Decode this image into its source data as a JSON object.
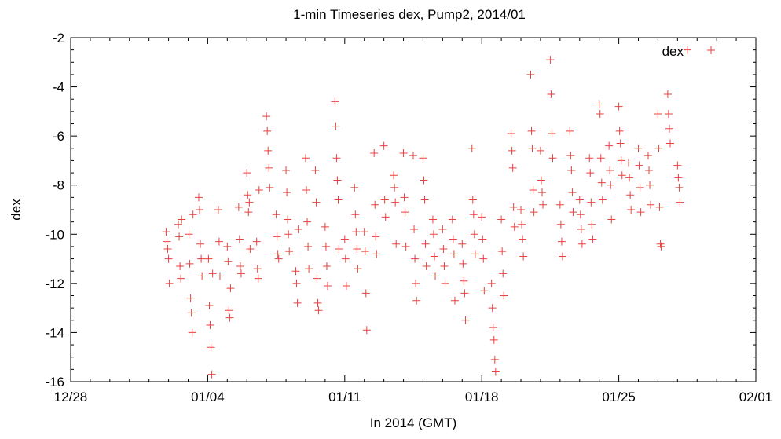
{
  "chart_data": {
    "type": "scatter",
    "title": "1-min Timeseries dex, Pump2, 2014/01",
    "xlabel": "In 2014 (GMT)",
    "ylabel": "dex",
    "x_axis": "date",
    "xlim": [
      "2013-12-28",
      "2014-02-01"
    ],
    "ylim": [
      -16,
      -2
    ],
    "x_ticks": [
      "12/28",
      "01/04",
      "01/11",
      "01/18",
      "01/25",
      "02/01"
    ],
    "y_ticks": [
      "-2",
      "-4",
      "-6",
      "-8",
      "-10",
      "-12",
      "-14",
      "-16"
    ],
    "legend": {
      "entry": "dex",
      "position": "top-right"
    },
    "grid": false,
    "marker": "+",
    "marker_color": "#e8423f",
    "series": [
      {
        "name": "dex",
        "points": [
          [
            "2014-01-01 21:00",
            -9.9
          ],
          [
            "2014-01-01 22:00",
            -10.3
          ],
          [
            "2014-01-01 23:00",
            -10.6
          ],
          [
            "2014-01-02 00:00",
            -11.0
          ],
          [
            "2014-01-02 01:00",
            -12.0
          ],
          [
            "2014-01-02 12:00",
            -9.6
          ],
          [
            "2014-01-02 13:00",
            -10.1
          ],
          [
            "2014-01-02 14:00",
            -11.3
          ],
          [
            "2014-01-02 15:00",
            -11.8
          ],
          [
            "2014-01-02 16:00",
            -9.4
          ],
          [
            "2014-01-03 01:00",
            -10.0
          ],
          [
            "2014-01-03 02:00",
            -11.2
          ],
          [
            "2014-01-03 03:00",
            -12.6
          ],
          [
            "2014-01-03 04:00",
            -13.2
          ],
          [
            "2014-01-03 05:00",
            -14.0
          ],
          [
            "2014-01-03 06:00",
            -9.2
          ],
          [
            "2014-01-03 13:00",
            -8.5
          ],
          [
            "2014-01-03 14:00",
            -9.0
          ],
          [
            "2014-01-03 15:00",
            -10.4
          ],
          [
            "2014-01-03 16:00",
            -11.0
          ],
          [
            "2014-01-03 17:00",
            -11.7
          ],
          [
            "2014-01-04 01:00",
            -11.0
          ],
          [
            "2014-01-04 02:00",
            -12.9
          ],
          [
            "2014-01-04 03:00",
            -13.7
          ],
          [
            "2014-01-04 04:00",
            -14.6
          ],
          [
            "2014-01-04 05:00",
            -15.7
          ],
          [
            "2014-01-04 06:00",
            -11.6
          ],
          [
            "2014-01-04 13:00",
            -9.0
          ],
          [
            "2014-01-04 14:00",
            -10.3
          ],
          [
            "2014-01-04 15:00",
            -11.7
          ],
          [
            "2014-01-05 00:00",
            -10.5
          ],
          [
            "2014-01-05 01:00",
            -11.1
          ],
          [
            "2014-01-05 02:00",
            -13.1
          ],
          [
            "2014-01-05 03:00",
            -13.4
          ],
          [
            "2014-01-05 04:00",
            -12.2
          ],
          [
            "2014-01-05 14:00",
            -8.9
          ],
          [
            "2014-01-05 15:00",
            -10.2
          ],
          [
            "2014-01-05 16:00",
            -11.3
          ],
          [
            "2014-01-05 17:00",
            -11.6
          ],
          [
            "2014-01-06 00:00",
            -7.5
          ],
          [
            "2014-01-06 01:00",
            -8.4
          ],
          [
            "2014-01-06 02:00",
            -9.1
          ],
          [
            "2014-01-06 03:00",
            -8.7
          ],
          [
            "2014-01-06 04:00",
            -10.6
          ],
          [
            "2014-01-06 12:00",
            -10.3
          ],
          [
            "2014-01-06 13:00",
            -11.4
          ],
          [
            "2014-01-06 14:00",
            -11.8
          ],
          [
            "2014-01-06 15:00",
            -8.2
          ],
          [
            "2014-01-07 00:00",
            -5.2
          ],
          [
            "2014-01-07 01:00",
            -5.8
          ],
          [
            "2014-01-07 02:00",
            -6.6
          ],
          [
            "2014-01-07 03:00",
            -7.3
          ],
          [
            "2014-01-07 04:00",
            -8.1
          ],
          [
            "2014-01-07 12:00",
            -9.2
          ],
          [
            "2014-01-07 13:00",
            -10.1
          ],
          [
            "2014-01-07 14:00",
            -10.8
          ],
          [
            "2014-01-07 15:00",
            -11.0
          ],
          [
            "2014-01-08 00:00",
            -7.4
          ],
          [
            "2014-01-08 01:00",
            -8.3
          ],
          [
            "2014-01-08 02:00",
            -9.4
          ],
          [
            "2014-01-08 03:00",
            -10.0
          ],
          [
            "2014-01-08 04:00",
            -10.7
          ],
          [
            "2014-01-08 12:00",
            -11.5
          ],
          [
            "2014-01-08 13:00",
            -12.0
          ],
          [
            "2014-01-08 14:00",
            -12.8
          ],
          [
            "2014-01-08 15:00",
            -9.8
          ],
          [
            "2014-01-09 00:00",
            -6.9
          ],
          [
            "2014-01-09 01:00",
            -8.2
          ],
          [
            "2014-01-09 02:00",
            -9.5
          ],
          [
            "2014-01-09 03:00",
            -10.5
          ],
          [
            "2014-01-09 04:00",
            -11.4
          ],
          [
            "2014-01-09 12:00",
            -7.4
          ],
          [
            "2014-01-09 13:00",
            -8.7
          ],
          [
            "2014-01-09 14:00",
            -11.8
          ],
          [
            "2014-01-09 15:00",
            -12.8
          ],
          [
            "2014-01-09 16:00",
            -13.1
          ],
          [
            "2014-01-10 00:00",
            -9.7
          ],
          [
            "2014-01-10 01:00",
            -10.5
          ],
          [
            "2014-01-10 02:00",
            -11.3
          ],
          [
            "2014-01-10 03:00",
            -12.1
          ],
          [
            "2014-01-10 12:00",
            -4.6
          ],
          [
            "2014-01-10 13:00",
            -5.6
          ],
          [
            "2014-01-10 14:00",
            -6.9
          ],
          [
            "2014-01-10 15:00",
            -7.8
          ],
          [
            "2014-01-10 16:00",
            -8.6
          ],
          [
            "2014-01-10 17:00",
            -10.6
          ],
          [
            "2014-01-11 00:00",
            -10.2
          ],
          [
            "2014-01-11 01:00",
            -11.0
          ],
          [
            "2014-01-11 02:00",
            -12.1
          ],
          [
            "2014-01-11 12:00",
            -8.1
          ],
          [
            "2014-01-11 13:00",
            -9.2
          ],
          [
            "2014-01-11 14:00",
            -9.9
          ],
          [
            "2014-01-11 15:00",
            -10.6
          ],
          [
            "2014-01-11 16:00",
            -11.4
          ],
          [
            "2014-01-12 00:00",
            -9.9
          ],
          [
            "2014-01-12 01:00",
            -10.7
          ],
          [
            "2014-01-12 02:00",
            -12.4
          ],
          [
            "2014-01-12 03:00",
            -13.9
          ],
          [
            "2014-01-12 12:00",
            -6.7
          ],
          [
            "2014-01-12 13:00",
            -8.8
          ],
          [
            "2014-01-12 14:00",
            -10.1
          ],
          [
            "2014-01-12 15:00",
            -10.8
          ],
          [
            "2014-01-13 00:00",
            -6.4
          ],
          [
            "2014-01-13 01:00",
            -8.6
          ],
          [
            "2014-01-13 02:00",
            -9.3
          ],
          [
            "2014-01-13 12:00",
            -7.6
          ],
          [
            "2014-01-13 13:00",
            -8.1
          ],
          [
            "2014-01-13 14:00",
            -8.7
          ],
          [
            "2014-01-13 15:00",
            -10.4
          ],
          [
            "2014-01-14 00:00",
            -6.7
          ],
          [
            "2014-01-14 01:00",
            -8.5
          ],
          [
            "2014-01-14 02:00",
            -9.1
          ],
          [
            "2014-01-14 03:00",
            -10.5
          ],
          [
            "2014-01-14 12:00",
            -6.8
          ],
          [
            "2014-01-14 13:00",
            -9.8
          ],
          [
            "2014-01-14 14:00",
            -11.0
          ],
          [
            "2014-01-14 15:00",
            -12.0
          ],
          [
            "2014-01-14 16:00",
            -12.7
          ],
          [
            "2014-01-15 00:00",
            -6.9
          ],
          [
            "2014-01-15 01:00",
            -7.8
          ],
          [
            "2014-01-15 02:00",
            -8.6
          ],
          [
            "2014-01-15 03:00",
            -10.4
          ],
          [
            "2014-01-15 04:00",
            -11.3
          ],
          [
            "2014-01-15 12:00",
            -9.4
          ],
          [
            "2014-01-15 13:00",
            -10.0
          ],
          [
            "2014-01-15 14:00",
            -10.9
          ],
          [
            "2014-01-15 15:00",
            -11.7
          ],
          [
            "2014-01-16 00:00",
            -9.8
          ],
          [
            "2014-01-16 01:00",
            -10.6
          ],
          [
            "2014-01-16 02:00",
            -11.3
          ],
          [
            "2014-01-16 03:00",
            -12.0
          ],
          [
            "2014-01-16 12:00",
            -9.4
          ],
          [
            "2014-01-16 13:00",
            -10.2
          ],
          [
            "2014-01-16 14:00",
            -10.8
          ],
          [
            "2014-01-16 15:00",
            -12.7
          ],
          [
            "2014-01-17 00:00",
            -10.4
          ],
          [
            "2014-01-17 01:00",
            -11.2
          ],
          [
            "2014-01-17 02:00",
            -11.9
          ],
          [
            "2014-01-17 03:00",
            -12.4
          ],
          [
            "2014-01-17 04:00",
            -13.5
          ],
          [
            "2014-01-17 12:00",
            -6.5
          ],
          [
            "2014-01-17 13:00",
            -8.6
          ],
          [
            "2014-01-17 14:00",
            -9.2
          ],
          [
            "2014-01-17 15:00",
            -10.0
          ],
          [
            "2014-01-17 16:00",
            -10.8
          ],
          [
            "2014-01-18 00:00",
            -9.3
          ],
          [
            "2014-01-18 01:00",
            -10.2
          ],
          [
            "2014-01-18 02:00",
            -11.0
          ],
          [
            "2014-01-18 03:00",
            -12.3
          ],
          [
            "2014-01-18 12:00",
            -12.0
          ],
          [
            "2014-01-18 13:00",
            -13.0
          ],
          [
            "2014-01-18 14:00",
            -13.8
          ],
          [
            "2014-01-18 15:00",
            -14.3
          ],
          [
            "2014-01-18 16:00",
            -15.1
          ],
          [
            "2014-01-18 17:00",
            -15.6
          ],
          [
            "2014-01-19 00:00",
            -9.4
          ],
          [
            "2014-01-19 01:00",
            -10.7
          ],
          [
            "2014-01-19 02:00",
            -11.6
          ],
          [
            "2014-01-19 03:00",
            -12.5
          ],
          [
            "2014-01-19 12:00",
            -5.9
          ],
          [
            "2014-01-19 13:00",
            -6.6
          ],
          [
            "2014-01-19 14:00",
            -7.3
          ],
          [
            "2014-01-19 15:00",
            -8.9
          ],
          [
            "2014-01-19 16:00",
            -9.7
          ],
          [
            "2014-01-20 00:00",
            -9.0
          ],
          [
            "2014-01-20 01:00",
            -9.6
          ],
          [
            "2014-01-20 02:00",
            -10.2
          ],
          [
            "2014-01-20 03:00",
            -10.9
          ],
          [
            "2014-01-20 12:00",
            -3.5
          ],
          [
            "2014-01-20 13:00",
            -5.8
          ],
          [
            "2014-01-20 14:00",
            -6.5
          ],
          [
            "2014-01-20 15:00",
            -8.2
          ],
          [
            "2014-01-20 16:00",
            -9.1
          ],
          [
            "2014-01-21 00:00",
            -6.6
          ],
          [
            "2014-01-21 01:00",
            -7.8
          ],
          [
            "2014-01-21 02:00",
            -8.3
          ],
          [
            "2014-01-21 03:00",
            -8.8
          ],
          [
            "2014-01-21 12:00",
            -2.9
          ],
          [
            "2014-01-21 13:00",
            -4.3
          ],
          [
            "2014-01-21 14:00",
            -5.9
          ],
          [
            "2014-01-21 15:00",
            -6.9
          ],
          [
            "2014-01-22 00:00",
            -8.8
          ],
          [
            "2014-01-22 01:00",
            -9.6
          ],
          [
            "2014-01-22 02:00",
            -10.3
          ],
          [
            "2014-01-22 03:00",
            -10.9
          ],
          [
            "2014-01-22 12:00",
            -5.8
          ],
          [
            "2014-01-22 13:00",
            -6.8
          ],
          [
            "2014-01-22 14:00",
            -7.4
          ],
          [
            "2014-01-22 15:00",
            -8.3
          ],
          [
            "2014-01-22 16:00",
            -9.1
          ],
          [
            "2014-01-23 00:00",
            -8.6
          ],
          [
            "2014-01-23 01:00",
            -9.2
          ],
          [
            "2014-01-23 02:00",
            -9.8
          ],
          [
            "2014-01-23 03:00",
            -10.4
          ],
          [
            "2014-01-23 12:00",
            -6.9
          ],
          [
            "2014-01-23 13:00",
            -7.5
          ],
          [
            "2014-01-23 14:00",
            -8.7
          ],
          [
            "2014-01-23 15:00",
            -9.6
          ],
          [
            "2014-01-23 16:00",
            -10.2
          ],
          [
            "2014-01-24 00:00",
            -4.7
          ],
          [
            "2014-01-24 01:00",
            -5.1
          ],
          [
            "2014-01-24 02:00",
            -6.9
          ],
          [
            "2014-01-24 03:00",
            -7.9
          ],
          [
            "2014-01-24 04:00",
            -8.6
          ],
          [
            "2014-01-24 12:00",
            -6.4
          ],
          [
            "2014-01-24 13:00",
            -7.4
          ],
          [
            "2014-01-24 14:00",
            -8.0
          ],
          [
            "2014-01-24 15:00",
            -9.4
          ],
          [
            "2014-01-25 00:00",
            -4.8
          ],
          [
            "2014-01-25 01:00",
            -5.8
          ],
          [
            "2014-01-25 02:00",
            -6.3
          ],
          [
            "2014-01-25 03:00",
            -7.0
          ],
          [
            "2014-01-25 04:00",
            -7.6
          ],
          [
            "2014-01-25 12:00",
            -7.1
          ],
          [
            "2014-01-25 13:00",
            -7.7
          ],
          [
            "2014-01-25 14:00",
            -8.4
          ],
          [
            "2014-01-25 15:00",
            -9.0
          ],
          [
            "2014-01-26 00:00",
            -6.5
          ],
          [
            "2014-01-26 01:00",
            -7.2
          ],
          [
            "2014-01-26 02:00",
            -8.1
          ],
          [
            "2014-01-26 03:00",
            -9.1
          ],
          [
            "2014-01-26 12:00",
            -6.8
          ],
          [
            "2014-01-26 13:00",
            -7.4
          ],
          [
            "2014-01-26 14:00",
            -8.0
          ],
          [
            "2014-01-26 15:00",
            -8.8
          ],
          [
            "2014-01-27 00:00",
            -5.1
          ],
          [
            "2014-01-27 01:00",
            -6.5
          ],
          [
            "2014-01-27 02:00",
            -8.9
          ],
          [
            "2014-01-27 03:00",
            -10.4
          ],
          [
            "2014-01-27 04:00",
            -10.5
          ],
          [
            "2014-01-27 12:00",
            -4.3
          ],
          [
            "2014-01-27 13:00",
            -5.1
          ],
          [
            "2014-01-27 14:00",
            -5.7
          ],
          [
            "2014-01-27 15:00",
            -6.3
          ],
          [
            "2014-01-28 00:00",
            -7.2
          ],
          [
            "2014-01-28 01:00",
            -7.7
          ],
          [
            "2014-01-28 02:00",
            -8.1
          ],
          [
            "2014-01-28 03:00",
            -8.7
          ],
          [
            "2014-01-28 12:00",
            -2.5
          ]
        ]
      }
    ]
  }
}
